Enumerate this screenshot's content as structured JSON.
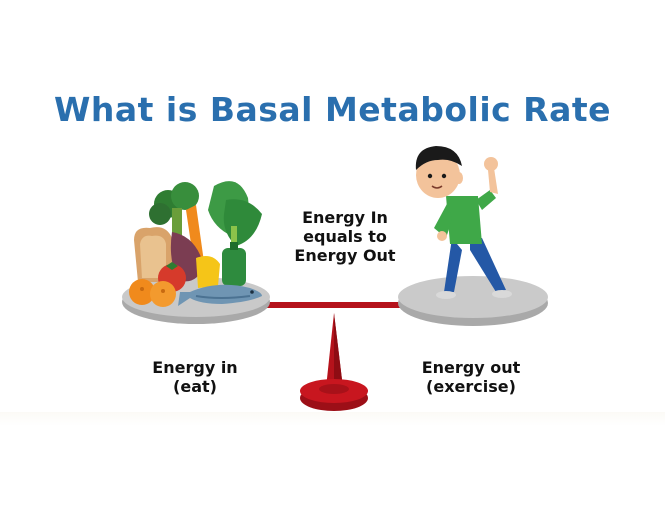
{
  "title": "What is Basal Metabolic Rate",
  "center_text": {
    "line1": "Energy In",
    "line2": "equals to",
    "line3": "Energy Out"
  },
  "left_label": {
    "line1": "Energy in",
    "line2": "(eat)"
  },
  "right_label": {
    "line1": "Energy out",
    "line2": "(exercise)"
  },
  "colors": {
    "title": "#2a6fae",
    "scale_base": "#b5121b",
    "plate": "#c7c7c7",
    "shirt": "#3fa848",
    "pants": "#2458a6"
  }
}
